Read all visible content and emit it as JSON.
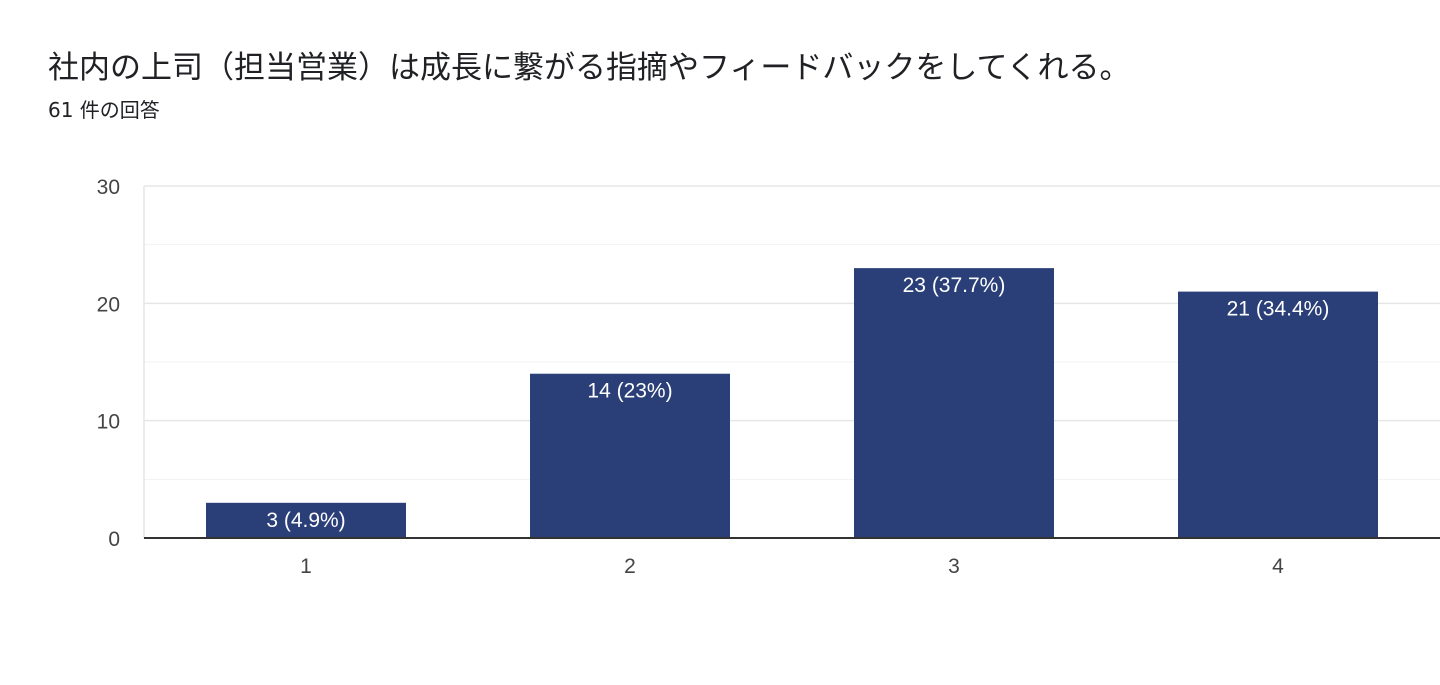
{
  "header": {
    "title": "社内の上司（担当営業）は成長に繋がる指摘やフィードバックをしてくれる。",
    "response_count": "61 件の回答"
  },
  "colors": {
    "bar": "#2a3f78",
    "grid_major": "#e6e6e6",
    "grid_minor": "#f3f3f3",
    "axis": "#333333"
  },
  "chart_data": {
    "type": "bar",
    "categories": [
      "1",
      "2",
      "3",
      "4"
    ],
    "values": [
      3,
      14,
      23,
      21
    ],
    "data_labels": [
      "3 (4.9%)",
      "14 (23%)",
      "23 (37.7%)",
      "21 (34.4%)"
    ],
    "y_ticks": [
      0,
      10,
      20,
      30
    ],
    "ylim": [
      0,
      30
    ],
    "grid": true,
    "legend": "none",
    "title": "社内の上司（担当営業）は成長に繋がる指摘やフィードバックをしてくれる。",
    "xlabel": "",
    "ylabel": ""
  }
}
